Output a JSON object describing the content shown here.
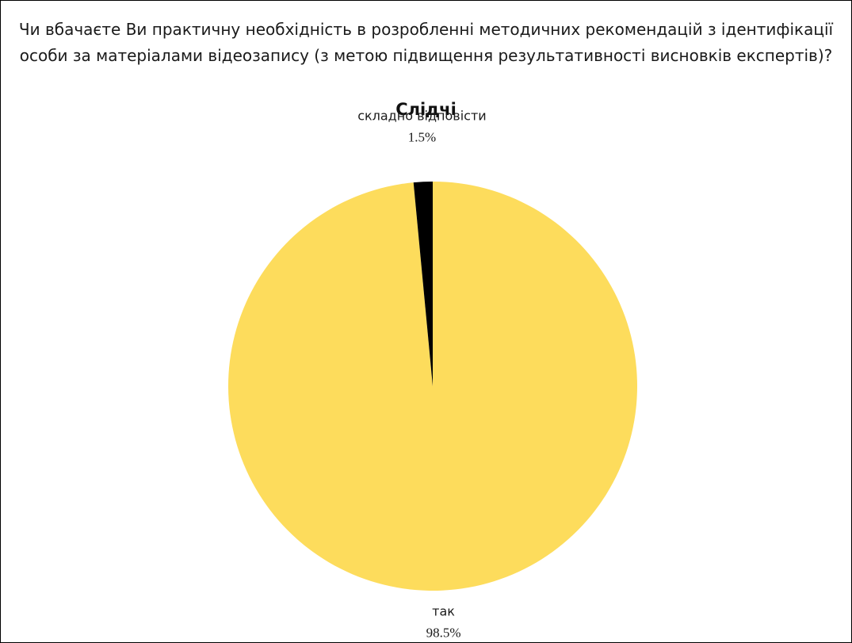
{
  "question": "Чи вбачаєте Ви практичну необхідність в розробленні методичних рекомендацій з ідентифікації особи за матеріалами відеозапису (з метою підвищення результативності висновків експертів)?",
  "chart_data": {
    "type": "pie",
    "title": "Слідчі",
    "slices": [
      {
        "label": "так",
        "value": 98.5,
        "value_label": "98.5%",
        "color": "#fddc5c"
      },
      {
        "label": "складно відповісти",
        "value": 1.5,
        "value_label": "1.5%",
        "color": "#000000"
      }
    ]
  }
}
